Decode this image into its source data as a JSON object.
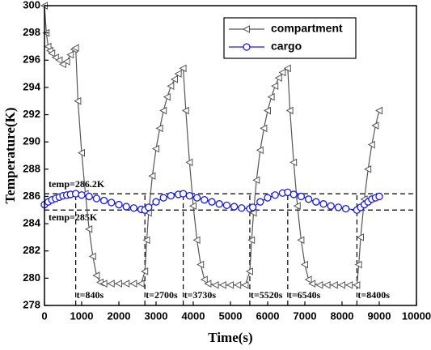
{
  "chart_data": {
    "type": "line",
    "x_label": "Time(s)",
    "y_label": "Temperature(K)",
    "xlim": [
      0,
      10000
    ],
    "xticks": [
      0,
      1000,
      2000,
      3000,
      4000,
      5000,
      6000,
      7000,
      8000,
      9000,
      10000
    ],
    "ylim": [
      278,
      300
    ],
    "yticks": [
      278,
      280,
      282,
      284,
      286,
      288,
      290,
      292,
      294,
      296,
      298,
      300
    ],
    "legend": "upper right",
    "series": [
      {
        "name": "compartment",
        "color": "#555555",
        "marker": "triangle-left",
        "x": [
          0,
          50,
          100,
          150,
          200,
          300,
          400,
          500,
          600,
          700,
          800,
          840,
          900,
          1000,
          1100,
          1200,
          1300,
          1400,
          1500,
          1600,
          1800,
          2000,
          2200,
          2400,
          2600,
          2700,
          2750,
          2800,
          2900,
          3000,
          3100,
          3200,
          3300,
          3400,
          3500,
          3600,
          3730,
          3800,
          3900,
          4000,
          4100,
          4200,
          4300,
          4400,
          4600,
          4800,
          5000,
          5200,
          5400,
          5520,
          5570,
          5620,
          5700,
          5800,
          5900,
          6000,
          6100,
          6200,
          6300,
          6400,
          6540,
          6600,
          6700,
          6800,
          6900,
          7000,
          7100,
          7200,
          7400,
          7600,
          7800,
          8000,
          8200,
          8400,
          8450,
          8500,
          8600,
          8700,
          8800,
          8900,
          9000
        ],
        "values": [
          300,
          298,
          297,
          296.7,
          296.5,
          296.2,
          296,
          295.7,
          295.9,
          296.4,
          296.8,
          296.9,
          293,
          289.2,
          286.2,
          283.6,
          281.6,
          280.2,
          279.7,
          279.6,
          279.6,
          279.6,
          279.6,
          279.6,
          279.6,
          280.5,
          282.8,
          284.8,
          287.5,
          289.5,
          291,
          292.3,
          293.3,
          294.1,
          294.6,
          295,
          295.4,
          292.3,
          288.5,
          285.3,
          282.8,
          281,
          279.9,
          279.6,
          279.5,
          279.5,
          279.5,
          279.5,
          279.5,
          280.5,
          282.8,
          284.8,
          287.2,
          289.4,
          291,
          292.3,
          293.3,
          294.1,
          294.7,
          295.1,
          295.4,
          292.3,
          288.5,
          285.3,
          282.8,
          281,
          279.9,
          279.6,
          279.5,
          279.5,
          279.5,
          279.5,
          279.5,
          279.5,
          281,
          283,
          285.8,
          288,
          289.8,
          291.2,
          292.3
        ]
      },
      {
        "name": "cargo",
        "color": "#1a1adc",
        "marker": "circle",
        "x": [
          0,
          100,
          200,
          300,
          400,
          500,
          600,
          700,
          840,
          1000,
          1200,
          1400,
          1600,
          1800,
          2000,
          2200,
          2400,
          2600,
          2700,
          2800,
          3000,
          3200,
          3400,
          3600,
          3730,
          3900,
          4100,
          4300,
          4500,
          4700,
          4900,
          5100,
          5300,
          5520,
          5600,
          5800,
          6000,
          6200,
          6400,
          6540,
          6700,
          6900,
          7100,
          7300,
          7500,
          7700,
          7900,
          8100,
          8400,
          8500,
          8600,
          8700,
          8800,
          8900,
          9000
        ],
        "values": [
          285.4,
          285.6,
          285.75,
          285.85,
          285.95,
          286.05,
          286.1,
          286.15,
          286.2,
          286.1,
          286,
          285.85,
          285.7,
          285.55,
          285.4,
          285.25,
          285.15,
          285.05,
          285,
          285.2,
          285.6,
          285.9,
          286.05,
          286.15,
          286.2,
          286.05,
          285.9,
          285.75,
          285.6,
          285.45,
          285.35,
          285.25,
          285.15,
          285.1,
          285.2,
          285.6,
          285.9,
          286.1,
          286.25,
          286.3,
          286.15,
          286,
          285.8,
          285.6,
          285.45,
          285.3,
          285.2,
          285.1,
          285,
          285.2,
          285.4,
          285.6,
          285.8,
          285.9,
          286
        ]
      }
    ],
    "hlines": [
      {
        "value": 286.2,
        "label": "temp=286.2K"
      },
      {
        "value": 285,
        "label": "temp=285K"
      }
    ],
    "vlines": [
      {
        "value": 840,
        "label": "t=840s"
      },
      {
        "value": 2700,
        "label": "t=2700s"
      },
      {
        "value": 3730,
        "label": "t=3730s"
      },
      {
        "value": 5520,
        "label": "t=5520s"
      },
      {
        "value": 6540,
        "label": "t=6540s"
      },
      {
        "value": 8400,
        "label": "t=8400s"
      }
    ]
  }
}
